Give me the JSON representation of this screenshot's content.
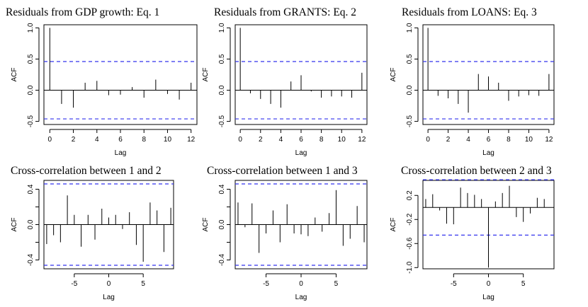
{
  "chart_data": [
    {
      "type": "bar",
      "title": "Residuals from GDP growth: Eq. 1",
      "xlabel": "Lag",
      "ylabel": "ACF",
      "x": [
        0,
        1,
        2,
        3,
        4,
        5,
        6,
        7,
        8,
        9,
        10,
        11,
        12
      ],
      "values": [
        1.0,
        -0.22,
        -0.28,
        0.12,
        0.15,
        -0.08,
        -0.07,
        0.05,
        -0.12,
        0.17,
        -0.06,
        -0.15,
        0.12
      ],
      "ci": 0.46,
      "xlim": [
        -0.5,
        12.5
      ],
      "ylim": [
        -0.55,
        1.05
      ],
      "xticks": [
        0,
        2,
        4,
        6,
        8,
        10,
        12
      ],
      "yticks": [
        -0.5,
        0.0,
        0.5,
        1.0
      ],
      "ytick_labels": [
        "-0.5",
        "0.0",
        "0.5",
        "1.0"
      ],
      "ci_color": "#3333ee"
    },
    {
      "type": "bar",
      "title": "Residuals from GRANTS: Eq. 2",
      "xlabel": "Lag",
      "ylabel": "ACF",
      "x": [
        0,
        1,
        2,
        3,
        4,
        5,
        6,
        7,
        8,
        9,
        10,
        11,
        12
      ],
      "values": [
        1.0,
        -0.05,
        -0.14,
        -0.22,
        -0.28,
        0.14,
        0.24,
        -0.02,
        -0.12,
        -0.1,
        -0.1,
        -0.12,
        0.28
      ],
      "ci": 0.46,
      "xlim": [
        -0.5,
        12.5
      ],
      "ylim": [
        -0.55,
        1.05
      ],
      "xticks": [
        0,
        2,
        4,
        6,
        8,
        10,
        12
      ],
      "yticks": [
        -0.5,
        0.0,
        0.5,
        1.0
      ],
      "ytick_labels": [
        "-0.5",
        "0.0",
        "0.5",
        "1.0"
      ],
      "ci_color": "#3333ee"
    },
    {
      "type": "bar",
      "title": "Residuals from LOANS: Eq. 3",
      "xlabel": "Lag",
      "ylabel": "ACF",
      "x": [
        0,
        1,
        2,
        3,
        4,
        5,
        6,
        7,
        8,
        9,
        10,
        11,
        12
      ],
      "values": [
        1.0,
        -0.09,
        -0.13,
        -0.22,
        -0.36,
        0.26,
        0.22,
        0.12,
        -0.17,
        -0.1,
        -0.08,
        -0.09,
        0.26
      ],
      "ci": 0.46,
      "xlim": [
        -0.5,
        12.5
      ],
      "ylim": [
        -0.55,
        1.05
      ],
      "xticks": [
        0,
        2,
        4,
        6,
        8,
        10,
        12
      ],
      "yticks": [
        -0.5,
        0.0,
        0.5,
        1.0
      ],
      "ytick_labels": [
        "-0.5",
        "0.0",
        "0.5",
        "1.0"
      ],
      "ci_color": "#3333ee"
    },
    {
      "type": "bar",
      "title": "Cross-correlation between 1 and 2",
      "xlabel": "Lag",
      "ylabel": "ACF",
      "x": [
        -9,
        -8,
        -7,
        -6,
        -5,
        -4,
        -3,
        -2,
        -1,
        0,
        1,
        2,
        3,
        4,
        5,
        6,
        7,
        8,
        9
      ],
      "values": [
        -0.22,
        -0.12,
        -0.2,
        0.33,
        0.11,
        -0.25,
        0.11,
        -0.17,
        0.18,
        0.08,
        0.11,
        -0.05,
        0.14,
        -0.23,
        -0.42,
        0.25,
        0.16,
        -0.31,
        0.19
      ],
      "ci": 0.46,
      "xlim": [
        -9.4,
        9.4
      ],
      "ylim": [
        -0.5,
        0.5
      ],
      "xticks": [
        -5,
        0,
        5
      ],
      "yticks": [
        -0.4,
        -0.2,
        0.0,
        0.2,
        0.4
      ],
      "ytick_labels": [
        "-0.4",
        "",
        "0.0",
        "",
        "0.4"
      ],
      "ci_color": "#3333ee"
    },
    {
      "type": "bar",
      "title": "Cross-correlation between 1 and 3",
      "xlabel": "Lag",
      "ylabel": "ACF",
      "x": [
        -9,
        -8,
        -7,
        -6,
        -5,
        -4,
        -3,
        -2,
        -1,
        0,
        1,
        2,
        3,
        4,
        5,
        6,
        7,
        8,
        9
      ],
      "values": [
        0.25,
        -0.03,
        0.24,
        -0.32,
        -0.1,
        0.16,
        -0.2,
        0.23,
        -0.1,
        -0.11,
        -0.13,
        0.08,
        -0.08,
        0.13,
        0.39,
        -0.24,
        -0.16,
        0.21,
        -0.2
      ],
      "ci": 0.46,
      "xlim": [
        -9.4,
        9.4
      ],
      "ylim": [
        -0.5,
        0.5
      ],
      "xticks": [
        -5,
        0,
        5
      ],
      "yticks": [
        -0.4,
        -0.2,
        0.0,
        0.2,
        0.4
      ],
      "ytick_labels": [
        "-0.4",
        "",
        "0.0",
        "",
        "0.4"
      ],
      "ci_color": "#3333ee"
    },
    {
      "type": "bar",
      "title": "Cross-correlation between 2 and 3",
      "xlabel": "Lag",
      "ylabel": "ACF",
      "x": [
        -9,
        -8,
        -7,
        -6,
        -5,
        -4,
        -3,
        -2,
        -1,
        0,
        1,
        2,
        3,
        4,
        5,
        6,
        7,
        8,
        9
      ],
      "values": [
        0.14,
        0.22,
        -0.05,
        -0.27,
        -0.28,
        0.33,
        0.24,
        0.21,
        0.14,
        -1.0,
        0.1,
        0.24,
        0.36,
        -0.16,
        -0.24,
        -0.1,
        0.16,
        0.14,
        0.0
      ],
      "ci": 0.46,
      "xlim": [
        -9.4,
        9.4
      ],
      "ylim": [
        -1.02,
        0.45
      ],
      "xticks": [
        -5,
        0,
        5
      ],
      "yticks": [
        -1.0,
        -0.6,
        -0.2,
        0.2
      ],
      "ytick_labels": [
        "-1.0",
        "-0.6",
        "-0.2",
        "0.2"
      ],
      "ci_color": "#3333ee"
    }
  ]
}
